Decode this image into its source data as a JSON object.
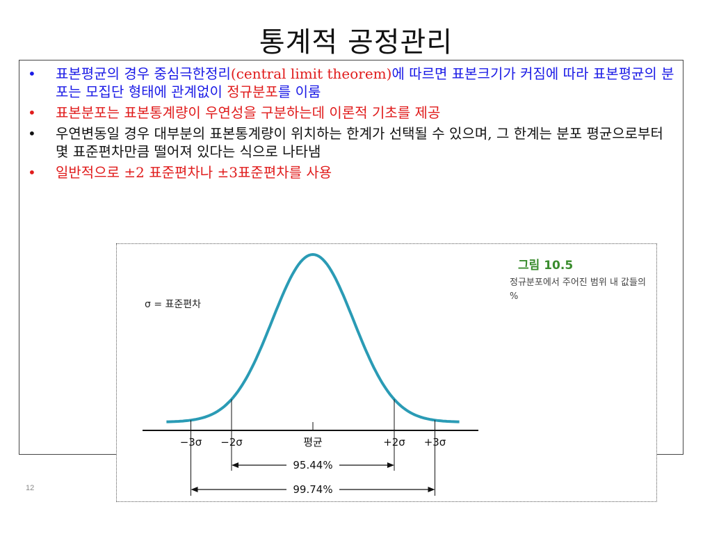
{
  "slide": {
    "title": "통계적 공정관리",
    "page_number": "12"
  },
  "bullets": [
    {
      "color": "#1a1ae6",
      "segments": [
        {
          "text": "표본평균의 경우 중심극한정리",
          "color": "#1a1ae6"
        },
        {
          "text": "(central limit theorem)",
          "color": "#e01b1b"
        },
        {
          "text": "에 따르면 표본크기가 커짐에 따라 표본평균의 분포는 모집단 형태에 관계없이 ",
          "color": "#1a1ae6"
        },
        {
          "text": "정규분포",
          "color": "#e01b1b"
        },
        {
          "text": "를 이룸",
          "color": "#1a1ae6"
        }
      ]
    },
    {
      "color": "#e01b1b",
      "segments": [
        {
          "text": "표본분포는 표본통계량이 우연성을 구분하는데 이론적 기초를 제공",
          "color": "#e01b1b"
        }
      ]
    },
    {
      "color": "#111111",
      "segments": [
        {
          "text": "우연변동일 경우 대부분의 표본통계량이 위치하는 한계가 선택될 수 있으며, 그 한계는 분포 평균으로부터 몇 표준편차만큼 떨어져 있다는 식으로 나타냄",
          "color": "#111111"
        }
      ]
    },
    {
      "color": "#e01b1b",
      "segments": [
        {
          "text": "일반적으로 ±2 표준편차나 ±3표준편차를 사용",
          "color": "#e01b1b"
        }
      ]
    }
  ],
  "figure": {
    "caption_title": "그림 10.5",
    "caption_body": "정규분포에서 주어진 범위 내 값들의 %",
    "sigma_note": "σ =  표준편차",
    "curve_color": "#2a9bb5",
    "axis_labels": [
      {
        "key": "m3",
        "sigma": -3,
        "text": "−3σ"
      },
      {
        "key": "m2",
        "sigma": -2,
        "text": "−2σ"
      },
      {
        "key": "mean",
        "sigma": 0,
        "text": "평균"
      },
      {
        "key": "p2",
        "sigma": 2,
        "text": "+2σ"
      },
      {
        "key": "p3",
        "sigma": 3,
        "text": "+3σ"
      }
    ],
    "ranges": [
      {
        "from": -2,
        "to": 2,
        "label": "95.44%"
      },
      {
        "from": -3,
        "to": 3,
        "label": "99.74%"
      }
    ]
  }
}
